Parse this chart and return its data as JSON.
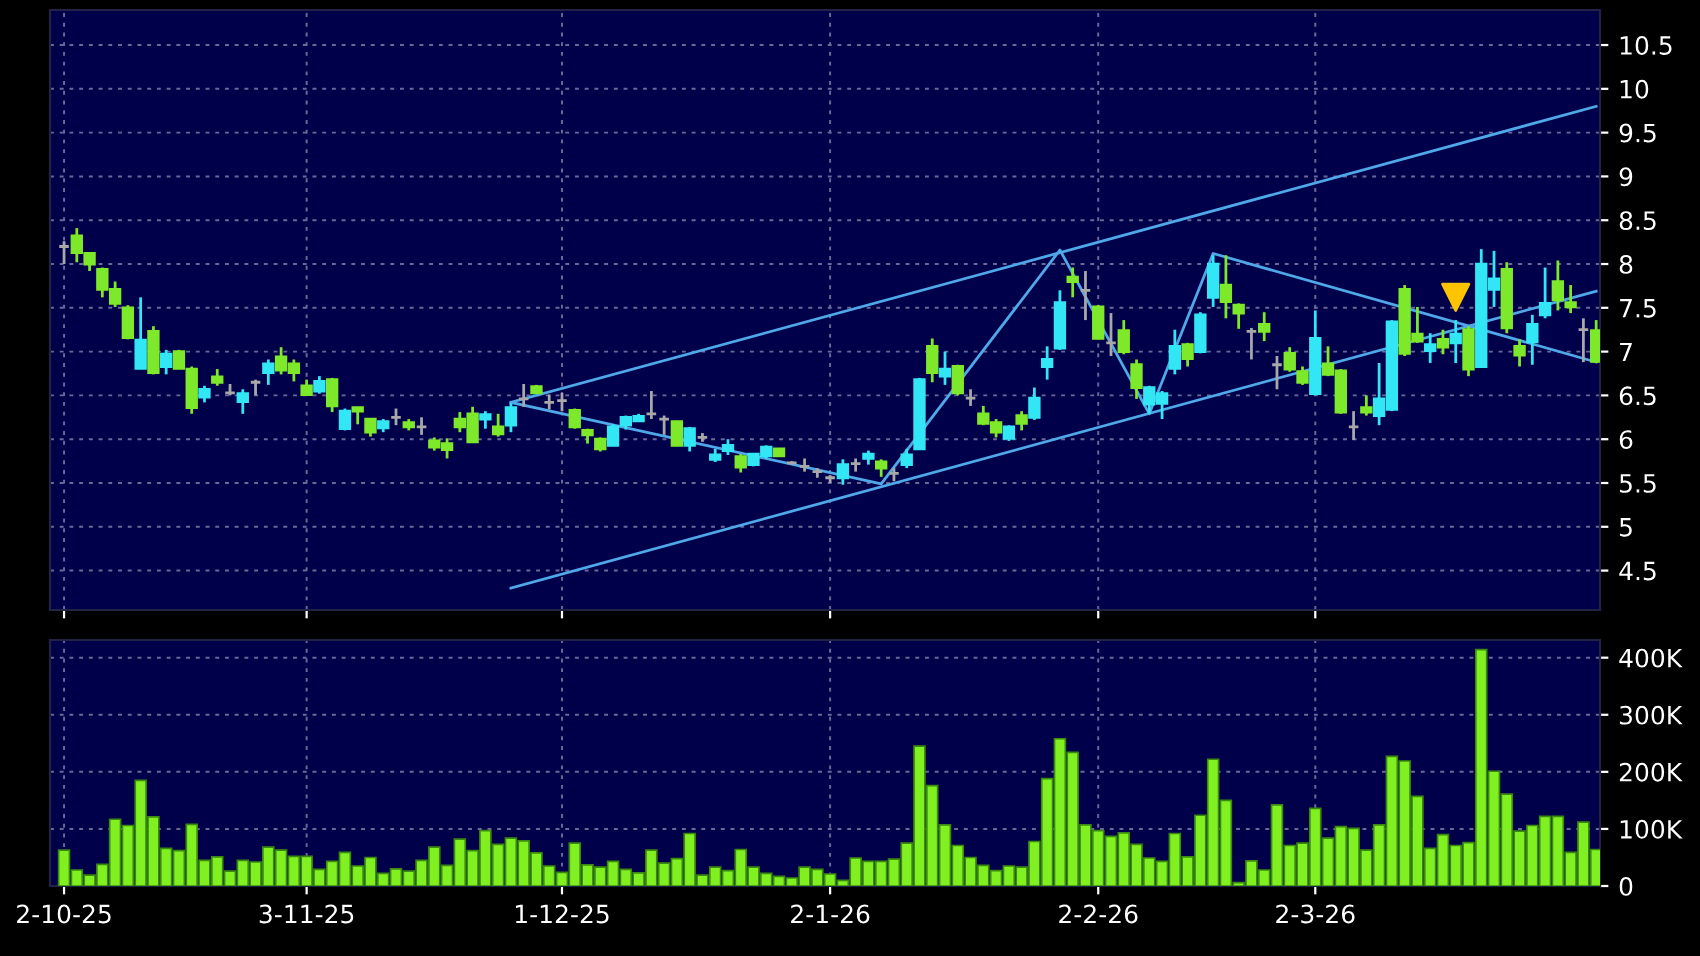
{
  "chart_data": [
    {
      "type": "candlestick",
      "categories": [
        null,
        null,
        null,
        null,
        null,
        null,
        null,
        null,
        null,
        null,
        null,
        null,
        null,
        null,
        null,
        null,
        null,
        null,
        null,
        null,
        null,
        null,
        null,
        null,
        null,
        null,
        null,
        null,
        null,
        null,
        null,
        null,
        null,
        null,
        null,
        null,
        null,
        null,
        null,
        null,
        null,
        null,
        null,
        null,
        null,
        null,
        null,
        null,
        null,
        null,
        null,
        null,
        null,
        null,
        null,
        null,
        null,
        null,
        null,
        null,
        null,
        null,
        null,
        null,
        null,
        null,
        null,
        null,
        null,
        null,
        null,
        null,
        null,
        null,
        null,
        null,
        null,
        null,
        null,
        null,
        null,
        null,
        null,
        null,
        null,
        null,
        null,
        null,
        null,
        null,
        null,
        null,
        null,
        null,
        null,
        null,
        null,
        null,
        null,
        null,
        null,
        null,
        null,
        null,
        null,
        null,
        null,
        null,
        null,
        null,
        null,
        null,
        null,
        null,
        null,
        null,
        null,
        null,
        null,
        null,
        null
      ],
      "ohlc": [
        [
          8.2,
          8.26,
          8.0,
          8.2
        ],
        [
          8.32,
          8.41,
          8.02,
          8.13
        ],
        [
          8.12,
          8.12,
          7.92,
          8.0
        ],
        [
          7.94,
          7.96,
          7.62,
          7.71
        ],
        [
          7.71,
          7.8,
          7.51,
          7.55
        ],
        [
          7.5,
          7.53,
          7.14,
          7.16
        ],
        [
          6.81,
          7.62,
          6.8,
          7.13
        ],
        [
          7.23,
          7.29,
          6.74,
          6.76
        ],
        [
          6.83,
          7.02,
          6.74,
          6.97
        ],
        [
          7.0,
          7.02,
          6.8,
          6.81
        ],
        [
          6.8,
          6.83,
          6.29,
          6.36
        ],
        [
          6.48,
          6.61,
          6.42,
          6.57
        ],
        [
          6.71,
          6.8,
          6.61,
          6.65
        ],
        [
          6.53,
          6.63,
          6.5,
          6.53
        ],
        [
          6.43,
          6.57,
          6.29,
          6.52
        ],
        [
          6.65,
          6.68,
          6.5,
          6.65
        ],
        [
          6.76,
          6.91,
          6.62,
          6.86
        ],
        [
          6.94,
          7.05,
          6.74,
          6.79
        ],
        [
          6.86,
          6.91,
          6.66,
          6.76
        ],
        [
          6.61,
          6.68,
          6.5,
          6.51
        ],
        [
          6.55,
          6.72,
          6.52,
          6.66
        ],
        [
          6.68,
          6.7,
          6.31,
          6.38
        ],
        [
          6.12,
          6.35,
          6.1,
          6.32
        ],
        [
          6.36,
          6.36,
          6.17,
          6.32
        ],
        [
          6.23,
          6.23,
          6.03,
          6.08
        ],
        [
          6.13,
          6.23,
          6.08,
          6.2
        ],
        [
          6.25,
          6.35,
          6.16,
          6.25
        ],
        [
          6.19,
          6.23,
          6.1,
          6.14
        ],
        [
          6.14,
          6.25,
          6.05,
          6.14
        ],
        [
          5.98,
          6.02,
          5.87,
          5.91
        ],
        [
          5.95,
          6.01,
          5.78,
          5.88
        ],
        [
          6.23,
          6.31,
          6.08,
          6.14
        ],
        [
          6.29,
          6.37,
          5.97,
          5.97
        ],
        [
          6.23,
          6.32,
          6.12,
          6.28
        ],
        [
          6.14,
          6.29,
          6.03,
          6.06
        ],
        [
          6.16,
          6.41,
          6.08,
          6.36
        ],
        [
          6.46,
          6.63,
          6.37,
          6.46
        ],
        [
          6.6,
          6.62,
          6.52,
          6.53
        ],
        [
          6.42,
          6.51,
          6.34,
          6.42
        ],
        [
          6.44,
          6.53,
          6.32,
          6.44
        ],
        [
          6.33,
          6.35,
          6.12,
          6.14
        ],
        [
          6.1,
          6.12,
          5.95,
          6.05
        ],
        [
          6.0,
          6.02,
          5.86,
          5.89
        ],
        [
          5.93,
          6.17,
          5.92,
          6.14
        ],
        [
          6.16,
          6.27,
          6.11,
          6.25
        ],
        [
          6.21,
          6.29,
          6.2,
          6.26
        ],
        [
          6.29,
          6.55,
          6.23,
          6.29
        ],
        [
          6.23,
          6.27,
          6.05,
          6.23
        ],
        [
          6.2,
          6.21,
          5.92,
          5.93
        ],
        [
          5.93,
          6.14,
          5.86,
          6.12
        ],
        [
          6.02,
          6.07,
          5.97,
          6.02
        ],
        [
          5.77,
          5.89,
          5.74,
          5.82
        ],
        [
          5.87,
          6.0,
          5.82,
          5.93
        ],
        [
          5.8,
          5.83,
          5.62,
          5.68
        ],
        [
          5.71,
          5.84,
          5.69,
          5.83
        ],
        [
          5.81,
          5.93,
          5.78,
          5.91
        ],
        [
          5.89,
          5.89,
          5.8,
          5.81
        ],
        [
          5.73,
          5.75,
          5.71,
          5.73
        ],
        [
          5.69,
          5.78,
          5.63,
          5.69
        ],
        [
          5.63,
          5.67,
          5.56,
          5.63
        ],
        [
          5.56,
          5.59,
          5.5,
          5.56
        ],
        [
          5.56,
          5.77,
          5.48,
          5.71
        ],
        [
          5.72,
          5.78,
          5.63,
          5.72
        ],
        [
          5.78,
          5.87,
          5.71,
          5.83
        ],
        [
          5.74,
          5.77,
          5.57,
          5.67
        ],
        [
          5.61,
          5.67,
          5.52,
          5.61
        ],
        [
          5.71,
          5.89,
          5.67,
          5.82
        ],
        [
          5.89,
          6.7,
          5.88,
          6.68
        ],
        [
          7.06,
          7.15,
          6.65,
          6.76
        ],
        [
          6.72,
          7.0,
          6.62,
          6.8
        ],
        [
          6.83,
          6.85,
          6.5,
          6.53
        ],
        [
          6.47,
          6.57,
          6.38,
          6.47
        ],
        [
          6.29,
          6.38,
          6.16,
          6.18
        ],
        [
          6.19,
          6.23,
          6.02,
          6.08
        ],
        [
          6.01,
          6.16,
          5.98,
          6.14
        ],
        [
          6.27,
          6.32,
          6.1,
          6.18
        ],
        [
          6.25,
          6.59,
          6.22,
          6.47
        ],
        [
          6.83,
          7.06,
          6.68,
          6.91
        ],
        [
          7.04,
          7.7,
          7.02,
          7.56
        ],
        [
          7.85,
          7.96,
          7.62,
          7.8
        ],
        [
          7.7,
          7.92,
          7.36,
          7.7
        ],
        [
          7.51,
          7.53,
          7.14,
          7.15
        ],
        [
          7.1,
          7.44,
          6.95,
          7.1
        ],
        [
          7.24,
          7.36,
          6.97,
          7.0
        ],
        [
          6.85,
          6.91,
          6.46,
          6.59
        ],
        [
          6.4,
          6.61,
          6.29,
          6.59
        ],
        [
          6.41,
          6.55,
          6.23,
          6.52
        ],
        [
          6.81,
          7.25,
          6.74,
          7.06
        ],
        [
          7.08,
          7.1,
          6.83,
          6.92
        ],
        [
          7.0,
          7.45,
          6.98,
          7.42
        ],
        [
          7.62,
          8.1,
          7.51,
          8.0
        ],
        [
          7.76,
          8.1,
          7.38,
          7.57
        ],
        [
          7.53,
          7.55,
          7.26,
          7.44
        ],
        [
          7.23,
          7.27,
          6.91,
          7.23
        ],
        [
          7.31,
          7.45,
          7.12,
          7.23
        ],
        [
          6.85,
          6.95,
          6.57,
          6.85
        ],
        [
          6.98,
          7.05,
          6.77,
          6.8
        ],
        [
          6.77,
          6.83,
          6.62,
          6.65
        ],
        [
          6.52,
          7.47,
          6.5,
          7.15
        ],
        [
          6.86,
          7.06,
          6.72,
          6.74
        ],
        [
          6.78,
          6.8,
          6.29,
          6.31
        ],
        [
          6.14,
          6.32,
          5.99,
          6.14
        ],
        [
          6.36,
          6.5,
          6.27,
          6.31
        ],
        [
          6.27,
          6.87,
          6.16,
          6.46
        ],
        [
          6.34,
          7.36,
          6.32,
          7.34
        ],
        [
          7.71,
          7.76,
          6.95,
          6.98
        ],
        [
          7.2,
          7.51,
          7.1,
          7.12
        ],
        [
          7.01,
          7.21,
          6.87,
          7.08
        ],
        [
          7.14,
          7.25,
          6.97,
          7.05
        ],
        [
          7.1,
          7.36,
          6.87,
          7.2
        ],
        [
          7.25,
          7.29,
          6.72,
          6.8
        ],
        [
          6.83,
          8.17,
          6.82,
          8.0
        ],
        [
          7.71,
          8.15,
          7.51,
          7.83
        ],
        [
          7.94,
          8.02,
          7.21,
          7.27
        ],
        [
          7.06,
          7.14,
          6.83,
          6.96
        ],
        [
          7.11,
          7.42,
          6.85,
          7.31
        ],
        [
          7.42,
          7.96,
          7.38,
          7.55
        ],
        [
          7.8,
          8.04,
          7.47,
          7.59
        ],
        [
          7.56,
          7.76,
          7.44,
          7.51
        ],
        [
          7.25,
          7.38,
          6.88,
          7.25
        ],
        [
          7.24,
          7.36,
          6.87,
          6.89
        ]
      ],
      "colors": [
        "#a8a8a8",
        "#7ee82a",
        "#7ee82a",
        "#7ee82a",
        "#7ee82a",
        "#7ee82a",
        "#33e6f5",
        "#7ee82a",
        "#33e6f5",
        "#7ee82a",
        "#7ee82a",
        "#33e6f5",
        "#7ee82a",
        "#a8a8a8",
        "#33e6f5",
        "#a8a8a8",
        "#33e6f5",
        "#7ee82a",
        "#7ee82a",
        "#7ee82a",
        "#33e6f5",
        "#7ee82a",
        "#33e6f5",
        "#7ee82a",
        "#7ee82a",
        "#33e6f5",
        "#a8a8a8",
        "#7ee82a",
        "#a8a8a8",
        "#7ee82a",
        "#7ee82a",
        "#7ee82a",
        "#7ee82a",
        "#33e6f5",
        "#7ee82a",
        "#33e6f5",
        "#a8a8a8",
        "#7ee82a",
        "#a8a8a8",
        "#a8a8a8",
        "#7ee82a",
        "#7ee82a",
        "#7ee82a",
        "#33e6f5",
        "#33e6f5",
        "#33e6f5",
        "#a8a8a8",
        "#a8a8a8",
        "#7ee82a",
        "#33e6f5",
        "#a8a8a8",
        "#33e6f5",
        "#33e6f5",
        "#7ee82a",
        "#33e6f5",
        "#33e6f5",
        "#7ee82a",
        "#a8a8a8",
        "#a8a8a8",
        "#a8a8a8",
        "#a8a8a8",
        "#33e6f5",
        "#a8a8a8",
        "#33e6f5",
        "#7ee82a",
        "#a8a8a8",
        "#33e6f5",
        "#33e6f5",
        "#7ee82a",
        "#33e6f5",
        "#7ee82a",
        "#a8a8a8",
        "#7ee82a",
        "#7ee82a",
        "#33e6f5",
        "#7ee82a",
        "#33e6f5",
        "#33e6f5",
        "#33e6f5",
        "#7ee82a",
        "#a8a8a8",
        "#7ee82a",
        "#a8a8a8",
        "#7ee82a",
        "#7ee82a",
        "#33e6f5",
        "#33e6f5",
        "#33e6f5",
        "#7ee82a",
        "#33e6f5",
        "#33e6f5",
        "#7ee82a",
        "#7ee82a",
        "#a8a8a8",
        "#7ee82a",
        "#a8a8a8",
        "#7ee82a",
        "#7ee82a",
        "#33e6f5",
        "#7ee82a",
        "#7ee82a",
        "#a8a8a8",
        "#7ee82a",
        "#33e6f5",
        "#33e6f5",
        "#7ee82a",
        "#7ee82a",
        "#33e6f5",
        "#7ee82a",
        "#33e6f5",
        "#7ee82a",
        "#33e6f5",
        "#33e6f5",
        "#7ee82a",
        "#7ee82a",
        "#33e6f5",
        "#33e6f5",
        "#7ee82a",
        "#7ee82a",
        "#a8a8a8",
        "#7ee82a"
      ],
      "series": [
        {
          "type": "line",
          "values": [
            null,
            null,
            null,
            null,
            null,
            null,
            null,
            null,
            null,
            null,
            null,
            null,
            null,
            null,
            null,
            null,
            null,
            null,
            null,
            null,
            null,
            null,
            null,
            null,
            null,
            null,
            null,
            null,
            null,
            null,
            null,
            null,
            null,
            null,
            null,
            6.42,
            null,
            null,
            null,
            null,
            null,
            null,
            null,
            null,
            null,
            null,
            null,
            null,
            null,
            null,
            null,
            null,
            null,
            null,
            null,
            null,
            null,
            null,
            null,
            null,
            null,
            null,
            null,
            null,
            null,
            null,
            null,
            null,
            null,
            null,
            null,
            null,
            null,
            null,
            null,
            null,
            null,
            null,
            null,
            null,
            null,
            null,
            null,
            null,
            null,
            null,
            null,
            null,
            null,
            null,
            null,
            null,
            null,
            null,
            null,
            null,
            null,
            null,
            null,
            null,
            null,
            null,
            null,
            null,
            null,
            null,
            null,
            null,
            null,
            null,
            null,
            null,
            null,
            null,
            null,
            null,
            null,
            null,
            null,
            null,
            9.8
          ],
          "color": "#4fa8e8"
        },
        {
          "type": "line",
          "values": [
            null,
            null,
            null,
            null,
            null,
            null,
            null,
            null,
            null,
            null,
            null,
            null,
            null,
            null,
            null,
            null,
            null,
            null,
            null,
            null,
            null,
            null,
            null,
            null,
            null,
            null,
            null,
            null,
            null,
            null,
            null,
            null,
            null,
            null,
            null,
            4.3,
            null,
            null,
            null,
            null,
            null,
            null,
            null,
            null,
            null,
            null,
            null,
            null,
            null,
            null,
            null,
            null,
            null,
            null,
            null,
            null,
            null,
            null,
            null,
            null,
            null,
            null,
            null,
            null,
            null,
            null,
            null,
            null,
            null,
            null,
            null,
            null,
            null,
            null,
            null,
            null,
            null,
            null,
            null,
            null,
            null,
            null,
            null,
            null,
            null,
            null,
            null,
            null,
            null,
            null,
            null,
            null,
            null,
            null,
            null,
            null,
            null,
            null,
            null,
            null,
            null,
            null,
            null,
            null,
            null,
            null,
            null,
            null,
            null,
            null,
            null,
            null,
            null,
            null,
            null,
            null,
            null,
            null,
            null,
            null,
            7.69
          ],
          "color": "#4fa8e8"
        },
        {
          "type": "scatter",
          "marker": "triangle",
          "values": [
            null,
            null,
            null,
            null,
            null,
            null,
            null,
            null,
            null,
            null,
            null,
            null,
            null,
            null,
            null,
            null,
            null,
            null,
            null,
            null,
            null,
            null,
            null,
            null,
            null,
            null,
            null,
            null,
            null,
            null,
            null,
            null,
            null,
            null,
            null,
            null,
            null,
            null,
            null,
            null,
            null,
            null,
            null,
            null,
            null,
            null,
            null,
            null,
            null,
            null,
            null,
            null,
            null,
            null,
            null,
            null,
            null,
            null,
            null,
            null,
            null,
            null,
            null,
            null,
            null,
            null,
            null,
            null,
            null,
            null,
            null,
            null,
            null,
            null,
            null,
            null,
            null,
            null,
            null,
            null,
            null,
            null,
            null,
            null,
            null,
            null,
            null,
            null,
            null,
            null,
            null,
            null,
            null,
            null,
            null,
            null,
            null,
            null,
            null,
            null,
            null,
            null,
            null,
            null,
            null,
            null,
            null,
            null,
            null,
            7.62,
            null,
            null,
            null,
            null,
            null,
            null,
            null,
            null,
            null,
            null,
            null
          ],
          "color": "#ffc400"
        },
        {
          "type": "line",
          "values": [
            null,
            null,
            null,
            null,
            null,
            null,
            null,
            null,
            null,
            null,
            null,
            null,
            null,
            null,
            null,
            null,
            null,
            null,
            null,
            null,
            null,
            null,
            null,
            null,
            null,
            null,
            null,
            null,
            null,
            null,
            null,
            null,
            null,
            null,
            null,
            6.42,
            null,
            null,
            null,
            null,
            null,
            null,
            null,
            null,
            null,
            null,
            null,
            null,
            null,
            null,
            null,
            null,
            null,
            null,
            null,
            null,
            null,
            null,
            null,
            null,
            null,
            null,
            null,
            null,
            5.49,
            null,
            null,
            null,
            null,
            null,
            null,
            null,
            null,
            null,
            null,
            null,
            null,
            null,
            8.16,
            null,
            null,
            null,
            null,
            null,
            null,
            6.29,
            null,
            null,
            null,
            null,
            8.12,
            null,
            null,
            null,
            null,
            null,
            null,
            null,
            null,
            null,
            null,
            null,
            null,
            null,
            null,
            null,
            null,
            null,
            null,
            null,
            null,
            null,
            null,
            null,
            null,
            null,
            null,
            null,
            null,
            null,
            6.88
          ],
          "color": "#4fa8e8"
        }
      ],
      "ylim": [
        4.05,
        10.9
      ],
      "yticks": [
        4.5,
        5,
        5.5,
        6,
        6.5,
        7,
        7.5,
        8,
        8.5,
        9,
        9.5,
        10,
        10.5
      ],
      "grid": true,
      "tick_labels": "y"
    },
    {
      "type": "bar",
      "categories": [
        "2-10-25",
        null,
        null,
        null,
        null,
        null,
        null,
        null,
        null,
        null,
        null,
        null,
        null,
        null,
        null,
        null,
        null,
        null,
        null,
        "3-11-25",
        null,
        null,
        null,
        null,
        null,
        null,
        null,
        null,
        null,
        null,
        null,
        null,
        null,
        null,
        null,
        null,
        null,
        null,
        null,
        "1-12-25",
        null,
        null,
        null,
        null,
        null,
        null,
        null,
        null,
        null,
        null,
        null,
        null,
        null,
        null,
        null,
        null,
        null,
        null,
        null,
        null,
        "2-1-26",
        null,
        null,
        null,
        null,
        null,
        null,
        null,
        null,
        null,
        null,
        null,
        null,
        null,
        null,
        null,
        null,
        null,
        null,
        null,
        null,
        "2-2-26",
        null,
        null,
        null,
        null,
        null,
        null,
        null,
        null,
        null,
        null,
        null,
        null,
        null,
        null,
        null,
        null,
        "2-3-26",
        null,
        null,
        null,
        null,
        null,
        null,
        null,
        null,
        null,
        null,
        null,
        null,
        null,
        null,
        null,
        null,
        null,
        null,
        null,
        null,
        null,
        null
      ],
      "values": [
        63000,
        28000,
        19000,
        38000,
        117000,
        106000,
        185000,
        121000,
        66000,
        62000,
        108000,
        45000,
        51000,
        26000,
        45000,
        42000,
        68000,
        63000,
        52000,
        52000,
        29000,
        43000,
        59000,
        35000,
        50000,
        22000,
        30000,
        26000,
        45000,
        68000,
        36000,
        82000,
        62000,
        97000,
        73000,
        84000,
        79000,
        58000,
        35000,
        24000,
        75000,
        37000,
        33000,
        43000,
        29000,
        23000,
        63000,
        40000,
        48000,
        92000,
        19000,
        33000,
        27000,
        64000,
        33000,
        22000,
        17000,
        14000,
        33000,
        29000,
        21000,
        10000,
        49000,
        43000,
        43000,
        47000,
        75000,
        245000,
        176000,
        107000,
        71000,
        50000,
        36000,
        27000,
        35000,
        33000,
        78000,
        188000,
        258000,
        234000,
        107000,
        97000,
        87000,
        93000,
        73000,
        49000,
        43000,
        92000,
        51000,
        124000,
        222000,
        150000,
        6000,
        44000,
        28000,
        142000,
        71000,
        75000,
        136000,
        84000,
        104000,
        101000,
        63000,
        107000,
        227000,
        219000,
        157000,
        66000,
        90000,
        71000,
        76000,
        414000,
        201000,
        161000,
        96000,
        106000,
        122000,
        122000,
        59000,
        112000,
        64000
      ],
      "color": "#80f020",
      "ylim": [
        0,
        431000
      ],
      "yticks": [
        0,
        {
          "value": 100000,
          "label": "100K"
        },
        {
          "value": 200000,
          "label": "200K"
        },
        {
          "value": 300000,
          "label": "300K"
        },
        {
          "value": 400000,
          "label": "400K"
        }
      ],
      "grid": true
    }
  ]
}
